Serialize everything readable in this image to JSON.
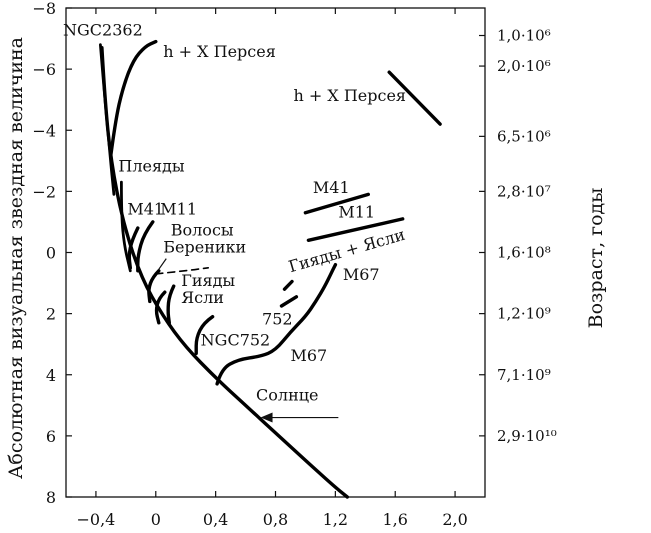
{
  "chart_data": {
    "type": "line",
    "title": "",
    "xlabel": "",
    "ylabel": "Абсолютная визуальная звездная величина",
    "y2label": "Возраст, годы",
    "xlim": [
      -0.6,
      2.2
    ],
    "ylim": [
      8,
      -8
    ],
    "x_ticks": [
      "−0,4",
      "0",
      "0,4",
      "0,8",
      "1,2",
      "1,6",
      "2,0"
    ],
    "y_ticks": [
      "−8",
      "−6",
      "−4",
      "−2",
      "0",
      "2",
      "4",
      "6",
      "8"
    ],
    "age_ticks": [
      {
        "mag": -7.1,
        "label": "1,0·10⁶"
      },
      {
        "mag": -6.1,
        "label": "2,0·10⁶"
      },
      {
        "mag": -3.8,
        "label": "6,5·10⁶"
      },
      {
        "mag": -2.0,
        "label": "2,8·10⁷"
      },
      {
        "mag": 0.0,
        "label": "1,6·10⁸"
      },
      {
        "mag": 2.0,
        "label": "1,2·10⁹"
      },
      {
        "mag": 4.0,
        "label": "7,1·10⁹"
      },
      {
        "mag": 6.0,
        "label": "2,9·10¹⁰"
      }
    ],
    "series": [
      {
        "key": "zams",
        "points": [
          [
            -0.36,
            -6.7
          ],
          [
            -0.34,
            -5.0
          ],
          [
            -0.3,
            -3.0
          ],
          [
            -0.22,
            -1.0
          ],
          [
            -0.1,
            0.8
          ],
          [
            0.05,
            2.1
          ],
          [
            0.2,
            3.1
          ],
          [
            0.4,
            4.1
          ],
          [
            0.6,
            5.0
          ],
          [
            0.8,
            5.9
          ],
          [
            1.0,
            6.8
          ],
          [
            1.18,
            7.6
          ],
          [
            1.28,
            8.0
          ]
        ]
      },
      {
        "key": "ngc2362",
        "points": [
          [
            -0.37,
            -6.8
          ],
          [
            -0.34,
            -5.0
          ],
          [
            -0.31,
            -3.4
          ],
          [
            -0.28,
            -1.9
          ]
        ]
      },
      {
        "key": "h_chi_persei",
        "points": [
          [
            -0.3,
            -3.2
          ],
          [
            -0.27,
            -4.3
          ],
          [
            -0.22,
            -5.4
          ],
          [
            -0.15,
            -6.3
          ],
          [
            -0.07,
            -6.75
          ],
          [
            0.0,
            -6.9
          ]
        ]
      },
      {
        "key": "pleiades",
        "points": [
          [
            -0.23,
            -2.3
          ],
          [
            -0.23,
            -1.2
          ],
          [
            -0.21,
            -0.2
          ],
          [
            -0.17,
            0.6
          ]
        ]
      },
      {
        "key": "m41",
        "points": [
          [
            -0.12,
            -0.8
          ],
          [
            -0.16,
            -0.4
          ],
          [
            -0.18,
            0.1
          ],
          [
            -0.17,
            0.5
          ]
        ]
      },
      {
        "key": "m11",
        "points": [
          [
            -0.02,
            -1.0
          ],
          [
            -0.08,
            -0.6
          ],
          [
            -0.12,
            0.1
          ],
          [
            -0.12,
            0.6
          ]
        ]
      },
      {
        "key": "coma",
        "points": [
          [
            0.02,
            0.6
          ],
          [
            -0.02,
            0.8
          ],
          [
            -0.05,
            1.2
          ],
          [
            -0.04,
            1.6
          ]
        ]
      },
      {
        "key": "hyades",
        "points": [
          [
            0.06,
            1.3
          ],
          [
            0.02,
            1.5
          ],
          [
            0.0,
            1.9
          ],
          [
            0.02,
            2.3
          ]
        ]
      },
      {
        "key": "praesepe",
        "points": [
          [
            0.12,
            1.1
          ],
          [
            0.09,
            1.4
          ],
          [
            0.08,
            1.9
          ],
          [
            0.09,
            2.3
          ]
        ]
      },
      {
        "key": "ngc752",
        "points": [
          [
            0.38,
            2.1
          ],
          [
            0.32,
            2.3
          ],
          [
            0.27,
            2.8
          ],
          [
            0.27,
            3.3
          ]
        ]
      },
      {
        "key": "m67",
        "points": [
          [
            0.41,
            4.3
          ],
          [
            0.44,
            3.8
          ],
          [
            0.55,
            3.5
          ],
          [
            0.7,
            3.4
          ],
          [
            0.8,
            3.2
          ],
          [
            0.9,
            2.6
          ],
          [
            1.0,
            2.1
          ],
          [
            1.07,
            1.6
          ],
          [
            1.13,
            1.1
          ],
          [
            1.17,
            0.7
          ],
          [
            1.2,
            0.4
          ]
        ]
      },
      {
        "key": "hyades_praesepe_giants",
        "style": "dash",
        "points": [
          [
            0.0,
            0.7
          ],
          [
            0.2,
            0.6
          ],
          [
            0.35,
            0.5
          ]
        ]
      },
      {
        "key": "h_chi_persei_giants",
        "points": [
          [
            1.56,
            -5.9
          ],
          [
            1.9,
            -4.2
          ]
        ]
      },
      {
        "key": "m41_giants",
        "points": [
          [
            1.0,
            -1.3
          ],
          [
            1.42,
            -1.9
          ]
        ]
      },
      {
        "key": "m11_giants",
        "points": [
          [
            1.02,
            -0.4
          ],
          [
            1.65,
            -1.1
          ]
        ]
      },
      {
        "key": "hyades_praesepe_red",
        "style": "dash",
        "points": [
          [
            0.86,
            1.2
          ],
          [
            0.91,
            0.95
          ]
        ]
      },
      {
        "key": "ngc752_giants",
        "style": "dash",
        "points": [
          [
            0.84,
            1.75
          ],
          [
            0.94,
            1.45
          ]
        ]
      }
    ],
    "annotations": [
      {
        "text": "NGC2362",
        "x": -0.62,
        "y": -7.1,
        "anchor": "start"
      },
      {
        "text": "h + Χ Персея",
        "x": 0.05,
        "y": -6.4,
        "anchor": "start"
      },
      {
        "text": "h + Χ Персея",
        "x": 0.92,
        "y": -4.95,
        "anchor": "start"
      },
      {
        "text": "Плеяды",
        "x": -0.25,
        "y": -2.65,
        "anchor": "start"
      },
      {
        "text": "M41",
        "x": -0.19,
        "y": -1.25,
        "anchor": "start"
      },
      {
        "text": "M11",
        "x": 0.03,
        "y": -1.25,
        "anchor": "start"
      },
      {
        "text": "Волосы",
        "x": 0.1,
        "y": -0.55,
        "anchor": "start"
      },
      {
        "text": "Береники",
        "x": 0.05,
        "y": 0.0,
        "anchor": "start"
      },
      {
        "text": "Гияды",
        "x": 0.17,
        "y": 1.1,
        "anchor": "start"
      },
      {
        "text": "Ясли",
        "x": 0.17,
        "y": 1.65,
        "anchor": "start"
      },
      {
        "text": "NGC752",
        "x": 0.3,
        "y": 3.05,
        "anchor": "start"
      },
      {
        "text": "752",
        "x": 0.71,
        "y": 2.35,
        "anchor": "start"
      },
      {
        "text": "M67",
        "x": 0.9,
        "y": 3.55,
        "anchor": "start"
      },
      {
        "text": "M67",
        "x": 1.25,
        "y": 0.9,
        "anchor": "start"
      },
      {
        "text": "M41",
        "x": 1.05,
        "y": -1.95,
        "anchor": "start"
      },
      {
        "text": "M11",
        "x": 1.22,
        "y": -1.15,
        "anchor": "start"
      },
      {
        "text": "Гияды + Ясли",
        "x": 0.9,
        "y": 0.65,
        "anchor": "start",
        "rotate": -16
      },
      {
        "text": "Солнце",
        "x": 0.67,
        "y": 4.85,
        "anchor": "start"
      }
    ],
    "sun_arrow": {
      "from": [
        1.22,
        5.4
      ],
      "to": [
        0.7,
        5.4
      ]
    },
    "grid": false
  }
}
